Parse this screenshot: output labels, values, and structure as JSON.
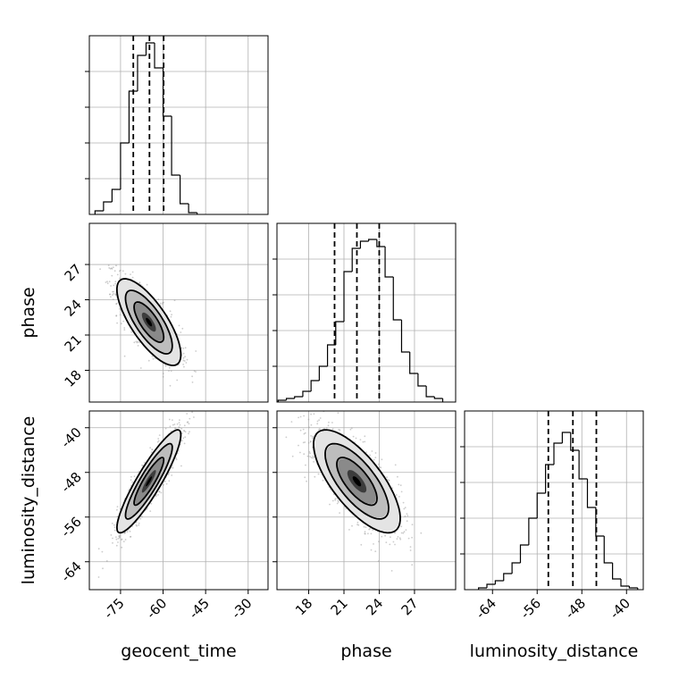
{
  "chart_data": {
    "type": "corner",
    "parameters": [
      {
        "name": "geocent_time",
        "range": [
          -86,
          -23
        ],
        "ticks": [
          -75,
          -60,
          -45,
          -30
        ],
        "quantiles": [
          -70.5,
          -64.8,
          -59.8
        ]
      },
      {
        "name": "phase",
        "range": [
          15.3,
          30.5
        ],
        "ticks": [
          18,
          21,
          24,
          27
        ],
        "quantiles": [
          20.2,
          22.1,
          24.0
        ]
      },
      {
        "name": "luminosity_distance",
        "range": [
          -69,
          -37
        ],
        "ticks": [
          -64,
          -56,
          -48,
          -40
        ],
        "quantiles": [
          -54.0,
          -49.6,
          -45.4
        ]
      }
    ],
    "histograms": [
      {
        "param": "geocent_time",
        "edges": [
          -84,
          -81,
          -78,
          -75,
          -72,
          -69,
          -66,
          -63,
          -60,
          -57,
          -54,
          -51,
          -48
        ],
        "counts": [
          0.02,
          0.07,
          0.14,
          0.4,
          0.69,
          0.89,
          0.96,
          0.82,
          0.55,
          0.22,
          0.06,
          0.01
        ]
      },
      {
        "param": "phase",
        "edges": [
          15.4,
          16.1,
          16.8,
          17.5,
          18.2,
          18.9,
          19.6,
          20.3,
          21.0,
          21.7,
          22.4,
          23.1,
          23.8,
          24.5,
          25.2,
          25.9,
          26.6,
          27.3,
          28.0,
          28.7,
          29.4
        ],
        "counts": [
          0.01,
          0.02,
          0.03,
          0.06,
          0.12,
          0.2,
          0.32,
          0.45,
          0.73,
          0.86,
          0.9,
          0.91,
          0.87,
          0.7,
          0.46,
          0.28,
          0.16,
          0.09,
          0.03,
          0.02
        ]
      },
      {
        "param": "luminosity_distance",
        "edges": [
          -66.5,
          -65,
          -63.5,
          -62,
          -60.5,
          -59,
          -57.5,
          -56,
          -54.5,
          -53,
          -51.5,
          -50,
          -48.5,
          -47,
          -45.5,
          -44,
          -42.5,
          -41,
          -39.5,
          -38
        ],
        "counts": [
          0.01,
          0.03,
          0.05,
          0.09,
          0.15,
          0.25,
          0.4,
          0.54,
          0.7,
          0.82,
          0.88,
          0.78,
          0.62,
          0.46,
          0.3,
          0.15,
          0.06,
          0.02,
          0.01
        ]
      }
    ],
    "pairs": [
      {
        "x": "geocent_time",
        "y": "phase",
        "center": [
          -65,
          22.1
        ],
        "sd": [
          5.5,
          1.8
        ],
        "rho": -0.75
      },
      {
        "x": "geocent_time",
        "y": "luminosity_distance",
        "center": [
          -65,
          -49.6
        ],
        "sd": [
          5.5,
          4.5
        ],
        "rho": 0.9
      },
      {
        "x": "phase",
        "y": "luminosity_distance",
        "center": [
          22.1,
          -49.6
        ],
        "sd": [
          1.8,
          4.5
        ],
        "rho": -0.72
      }
    ],
    "axis_labels": {
      "x": [
        "geocent_time",
        "phase",
        "luminosity_distance"
      ],
      "y": [
        "phase",
        "luminosity_distance"
      ]
    },
    "grid": true,
    "colors": {
      "line": "#000000",
      "grid": "#b0b0b0",
      "points": "#9a9a9a",
      "axes": "#000000"
    }
  }
}
